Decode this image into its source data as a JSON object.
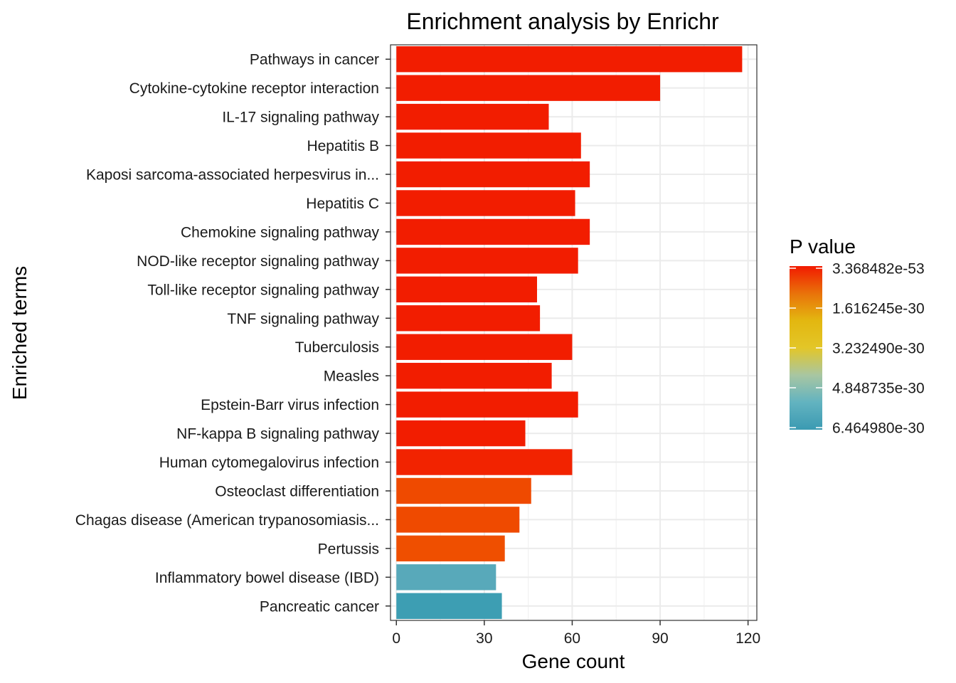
{
  "chart_data": {
    "type": "bar",
    "orientation": "horizontal",
    "title": "Enrichment analysis by Enrichr",
    "xlabel": "Gene count",
    "ylabel": "Enriched terms",
    "xlim": [
      -2,
      123
    ],
    "xticks": [
      0,
      30,
      60,
      90,
      120
    ],
    "grid": true,
    "categories": [
      "Pathways in cancer",
      "Cytokine-cytokine receptor interaction",
      "IL-17 signaling pathway",
      "Hepatitis B",
      "Kaposi sarcoma-associated herpesvirus in...",
      "Hepatitis C",
      "Chemokine signaling pathway",
      "NOD-like receptor signaling pathway",
      "Toll-like receptor signaling pathway",
      "TNF signaling pathway",
      "Tuberculosis",
      "Measles",
      "Epstein-Barr virus infection",
      "NF-kappa B signaling pathway",
      "Human cytomegalovirus infection",
      "Osteoclast differentiation",
      "Chagas disease (American trypanosomiasis...",
      "Pertussis",
      "Inflammatory bowel disease (IBD)",
      "Pancreatic cancer"
    ],
    "values": [
      118,
      90,
      52,
      63,
      66,
      61,
      66,
      62,
      48,
      49,
      60,
      53,
      62,
      44,
      60,
      46,
      42,
      37,
      34,
      36
    ],
    "bar_colors": [
      "#f21d00",
      "#f21d00",
      "#f21d00",
      "#f21d00",
      "#f21d00",
      "#f21d00",
      "#f21d00",
      "#f21d00",
      "#f21d00",
      "#f21d00",
      "#f21d00",
      "#f21d00",
      "#f21d00",
      "#f21d00",
      "#f22300",
      "#ef4a00",
      "#ef4a00",
      "#ef4f00",
      "#58a9ba",
      "#3d9eb3"
    ],
    "legend": {
      "title": "P value",
      "position": "right",
      "labels": [
        "3.368482e-53",
        "1.616245e-30",
        "3.232490e-30",
        "4.848735e-30",
        "6.464980e-30"
      ],
      "gradient_colors": [
        "#f21a00",
        "#e9720a",
        "#e3b710",
        "#e3c628",
        "#a8c6a2",
        "#62b3c0",
        "#3b9ab2"
      ]
    }
  }
}
